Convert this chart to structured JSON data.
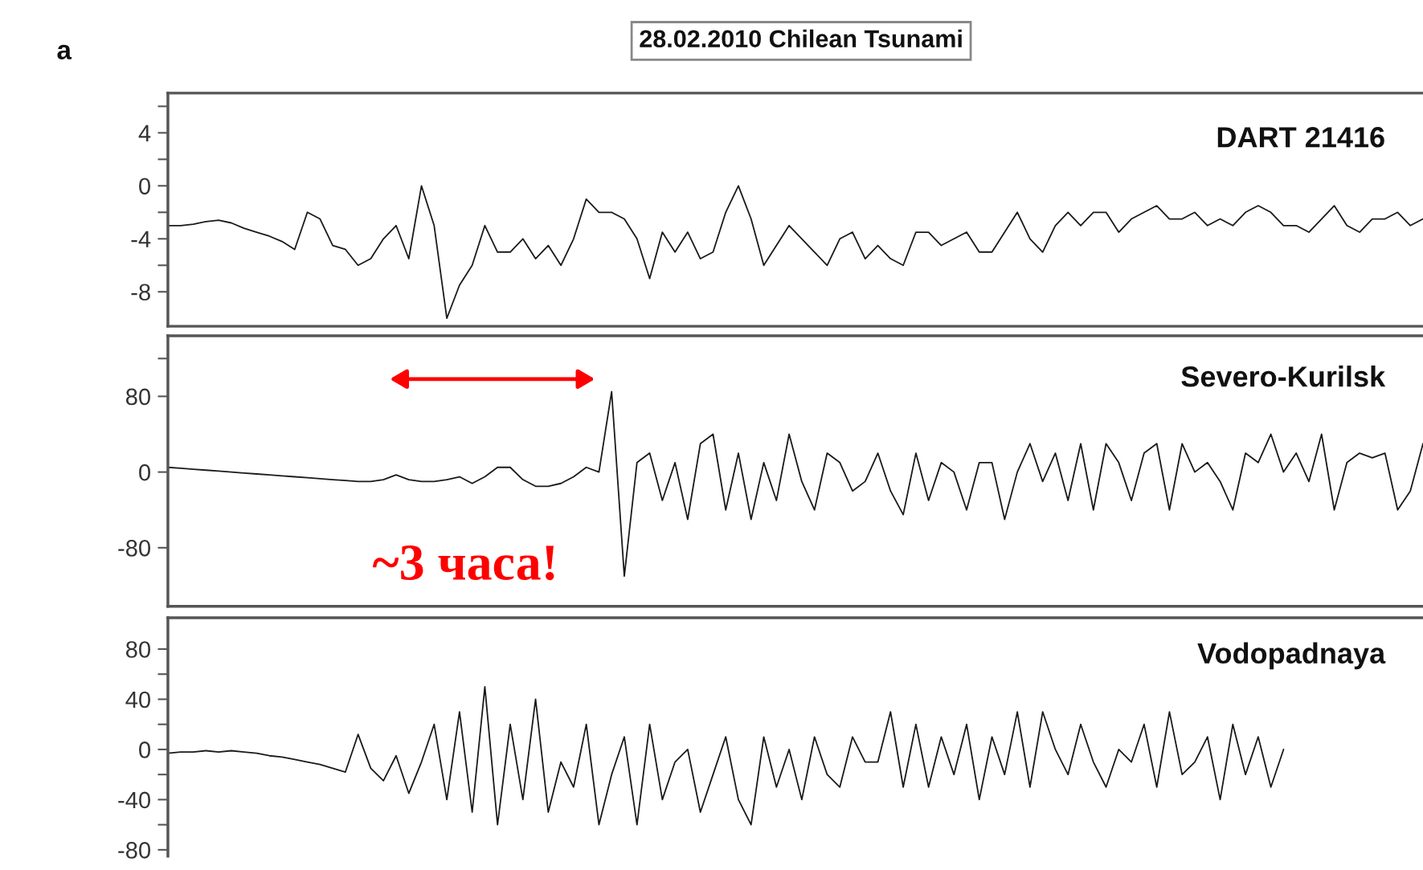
{
  "chart_data": [
    {
      "type": "line",
      "title": "28.02.2010 Chilean Tsunami",
      "annotations": [
        "a"
      ],
      "categories": [
        null,
        null,
        null,
        null,
        null,
        null,
        null,
        null,
        null,
        null,
        null,
        null,
        null,
        null,
        null,
        null,
        null,
        null,
        null,
        null,
        null,
        null,
        null,
        null,
        null,
        null,
        null,
        null,
        null,
        null,
        null,
        null,
        null,
        null,
        null,
        null,
        null,
        null,
        null,
        null,
        null,
        null,
        null,
        null,
        null,
        null,
        null,
        null,
        null,
        null,
        null,
        null,
        null,
        null,
        null,
        null,
        null,
        null,
        null,
        null,
        null,
        null,
        null,
        null,
        null,
        null,
        null,
        null,
        null,
        null,
        null,
        null,
        null,
        null,
        null,
        null,
        null,
        null,
        null,
        null,
        null,
        null,
        null,
        null,
        null,
        null,
        null,
        null,
        null,
        null,
        null,
        null,
        null,
        null,
        null,
        null,
        null,
        null,
        null,
        null
      ],
      "series": [
        {
          "name": "DART 21416",
          "color": "#1a1a1a",
          "values": [
            -3,
            -3,
            -2.9,
            -2.7,
            -2.6,
            -2.8,
            -3.2,
            -3.5,
            -3.8,
            -4.2,
            -4.8,
            -2,
            -2.5,
            -4.5,
            -4.8,
            -6,
            -5.5,
            -4,
            -3,
            -5.5,
            0,
            -3,
            -10,
            -7.5,
            -6,
            -3,
            -5,
            -5,
            -4,
            -5.5,
            -4.5,
            -6,
            -4,
            -1,
            -2,
            -2,
            -2.5,
            -4,
            -7,
            -3.5,
            -5,
            -3.5,
            -5.5,
            -5,
            -2,
            0,
            -2.5,
            -6,
            -4.5,
            -3,
            -4,
            -5,
            -6,
            -4,
            -3.5,
            -5.5,
            -4.5,
            -5.5,
            -6,
            -3.5,
            -3.5,
            -4.5,
            -4,
            -3.5,
            -5,
            -5,
            -3.5,
            -2,
            -4,
            -5,
            -3,
            -2,
            -3,
            -2,
            -2,
            -3.5,
            -2.5,
            -2,
            -1.5,
            -2.5,
            -2.5,
            -2,
            -3,
            -2.5,
            -3,
            -2,
            -1.5,
            -2,
            -3,
            -3,
            -3.5,
            -2.5,
            -1.5,
            -3,
            -3.5,
            -2.5,
            -2.5,
            -2,
            -3,
            -2.5
          ]
        }
      ],
      "ylim": [
        -10.6,
        7
      ],
      "yticks": [
        {
          "value": 6,
          "label": null
        },
        4,
        {
          "value": 2,
          "label": null
        },
        0,
        {
          "value": -2,
          "label": null
        },
        -4,
        {
          "value": -6,
          "label": null
        },
        -8
      ],
      "tick_labels": "y",
      "grid": false,
      "legend": false
    },
    {
      "type": "line",
      "annotations": [
        "~3 часа!"
      ],
      "categories": [
        null,
        null,
        null,
        null,
        null,
        null,
        null,
        null,
        null,
        null,
        null,
        null,
        null,
        null,
        null,
        null,
        null,
        null,
        null,
        null,
        null,
        null,
        null,
        null,
        null,
        null,
        null,
        null,
        null,
        null,
        null,
        null,
        null,
        null,
        null,
        null,
        null,
        null,
        null,
        null,
        null,
        null,
        null,
        null,
        null,
        null,
        null,
        null,
        null,
        null,
        null,
        null,
        null,
        null,
        null,
        null,
        null,
        null,
        null,
        null,
        null,
        null,
        null,
        null,
        null,
        null,
        null,
        null,
        null,
        null,
        null,
        null,
        null,
        null,
        null,
        null,
        null,
        null,
        null,
        null,
        null,
        null,
        null,
        null,
        null,
        null,
        null,
        null,
        null,
        null,
        null,
        null,
        null,
        null,
        null,
        null,
        null,
        null,
        null,
        null
      ],
      "series": [
        {
          "name": "Severo-Kurilsk",
          "color": "#1a1a1a",
          "values": [
            5,
            4,
            3,
            2,
            1,
            0,
            -1,
            -2,
            -3,
            -4,
            -5,
            -6,
            -7,
            -8,
            -9,
            -10,
            -10,
            -8,
            -3,
            -8,
            -10,
            -10,
            -8,
            -5,
            -12,
            -5,
            5,
            5,
            -8,
            -15,
            -15,
            -12,
            -5,
            5,
            0,
            85,
            -110,
            10,
            20,
            -30,
            10,
            -50,
            30,
            40,
            -40,
            20,
            -50,
            10,
            -30,
            40,
            -10,
            -40,
            20,
            10,
            -20,
            -10,
            20,
            -20,
            -45,
            20,
            -30,
            10,
            0,
            -40,
            10,
            10,
            -50,
            0,
            30,
            -10,
            20,
            -30,
            30,
            -40,
            30,
            10,
            -30,
            20,
            30,
            -40,
            30,
            0,
            10,
            -10,
            -40,
            20,
            10,
            40,
            0,
            20,
            -10,
            40,
            -40,
            10,
            20,
            15,
            20,
            -40,
            -20,
            30
          ]
        }
      ],
      "ylim": [
        -142,
        144
      ],
      "yticks": [
        {
          "value": 120,
          "label": null
        },
        80,
        0,
        -80
      ],
      "tick_labels": "y",
      "grid": false,
      "legend": false
    },
    {
      "type": "line",
      "categories": [
        null,
        null,
        null,
        null,
        null,
        null,
        null,
        null,
        null,
        null,
        null,
        null,
        null,
        null,
        null,
        null,
        null,
        null,
        null,
        null,
        null,
        null,
        null,
        null,
        null,
        null,
        null,
        null,
        null,
        null,
        null,
        null,
        null,
        null,
        null,
        null,
        null,
        null,
        null,
        null,
        null,
        null,
        null,
        null,
        null,
        null,
        null,
        null,
        null,
        null,
        null,
        null,
        null,
        null,
        null,
        null,
        null,
        null,
        null,
        null,
        null,
        null,
        null,
        null,
        null,
        null,
        null,
        null,
        null,
        null,
        null,
        null,
        null,
        null,
        null,
        null,
        null,
        null,
        null,
        null,
        null,
        null,
        null,
        null,
        null,
        null,
        null,
        null,
        null,
        null,
        null,
        null,
        null,
        null,
        null,
        null,
        null,
        null,
        null,
        null
      ],
      "series": [
        {
          "name": "Vodopadnaya",
          "color": "#1a1a1a",
          "values": [
            -3,
            -2,
            -2,
            -1,
            -2,
            -1,
            -2,
            -3,
            -5,
            -6,
            -8,
            -10,
            -12,
            -15,
            -18,
            12,
            -15,
            -25,
            -5,
            -35,
            -10,
            20,
            -40,
            30,
            -50,
            50,
            -60,
            20,
            -40,
            40,
            -50,
            -10,
            -30,
            20,
            -60,
            -20,
            10,
            -60,
            20,
            -40,
            -10,
            0,
            -50,
            -20,
            10,
            -40,
            -60,
            10,
            -30,
            0,
            -40,
            10,
            -20,
            -30,
            10,
            -10,
            -10,
            30,
            -30,
            20,
            -30,
            10,
            -20,
            20,
            -40,
            10,
            -20,
            30,
            -30,
            30,
            0,
            -20,
            20,
            -10,
            -30,
            0,
            -10,
            20,
            -30,
            30,
            -20,
            -10,
            10,
            -40,
            20,
            -20,
            10,
            -30,
            0,
            null,
            null,
            null,
            null,
            null,
            null,
            null,
            null,
            null,
            null,
            null
          ]
        }
      ],
      "ylim": [
        -85,
        105
      ],
      "yticks": [
        80,
        {
          "value": 60,
          "label": null
        },
        40,
        {
          "value": 20,
          "label": null
        },
        0,
        {
          "value": -20,
          "label": null
        },
        -40,
        {
          "value": -60,
          "label": null
        },
        -80
      ],
      "tick_labels": "y",
      "grid": false,
      "legend": false
    }
  ]
}
